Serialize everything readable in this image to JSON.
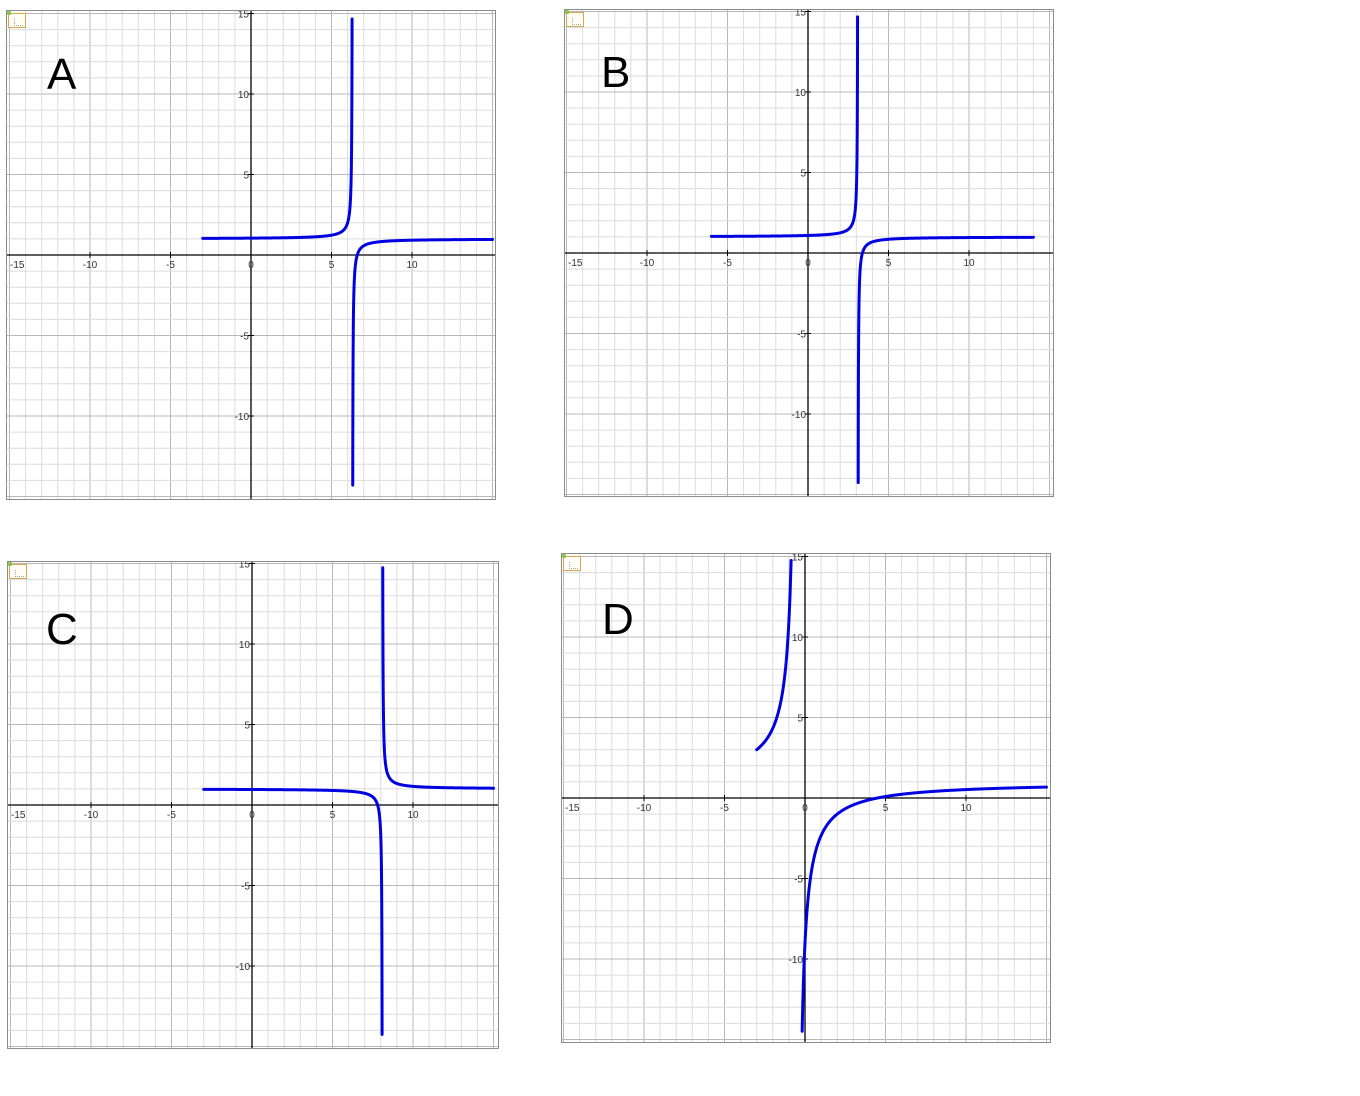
{
  "panels": [
    {
      "id": "A",
      "label": "A"
    },
    {
      "id": "B",
      "label": "B"
    },
    {
      "id": "C",
      "label": "C"
    },
    {
      "id": "D",
      "label": "D"
    }
  ],
  "chart_data": [
    {
      "type": "line",
      "panel_label": "A",
      "xlim": [
        -15,
        15
      ],
      "ylim": [
        -15,
        15
      ],
      "grid": true,
      "x_tick_labels": [
        "-15",
        "-10",
        "-5",
        "0",
        "5",
        "10"
      ],
      "y_tick_labels": [
        "15",
        "10",
        "5",
        "-5",
        "-10"
      ],
      "line_color": "#0000e0",
      "series": [
        {
          "function": "y = 1 + 0.3/(6.3 - x)",
          "x_range": [
            -3,
            15
          ],
          "asymptote_x": 6.3
        }
      ]
    },
    {
      "type": "line",
      "panel_label": "B",
      "xlim": [
        -15,
        15
      ],
      "ylim": [
        -15,
        15
      ],
      "grid": true,
      "x_tick_labels": [
        "-15",
        "-10",
        "-5",
        "0",
        "5",
        "10"
      ],
      "y_tick_labels": [
        "15",
        "10",
        "5",
        "-5",
        "-10"
      ],
      "line_color": "#0000e0",
      "series": [
        {
          "function": "y = 1 + 0.28/(3.1 - x)",
          "x_range": [
            -6,
            14
          ],
          "asymptote_x": 3.1
        }
      ]
    },
    {
      "type": "line",
      "panel_label": "C",
      "xlim": [
        -15,
        15
      ],
      "ylim": [
        -15,
        15
      ],
      "grid": true,
      "x_tick_labels": [
        "-15",
        "-10",
        "-5",
        "0",
        "5",
        "10"
      ],
      "y_tick_labels": [
        "15",
        "10",
        "5",
        "-5",
        "-10"
      ],
      "line_color": "#0000e0",
      "series": [
        {
          "function": "y = 1 + 0.3/(x - 8.1)",
          "x_range": [
            -3,
            15
          ],
          "asymptote_x": 8.1
        }
      ]
    },
    {
      "type": "line",
      "panel_label": "D",
      "xlim": [
        -15,
        15
      ],
      "ylim": [
        -15,
        15
      ],
      "grid": true,
      "x_tick_labels": [
        "-15",
        "-10",
        "-5",
        "0",
        "5",
        "10"
      ],
      "y_tick_labels": [
        "15",
        "10",
        "5",
        "-5",
        "-10"
      ],
      "line_color": "#0000e0",
      "series": [
        {
          "function": "y = 1 - 5/(x + 0.5)",
          "x_range": [
            -3,
            15
          ],
          "asymptote_x": -0.5
        }
      ]
    }
  ]
}
